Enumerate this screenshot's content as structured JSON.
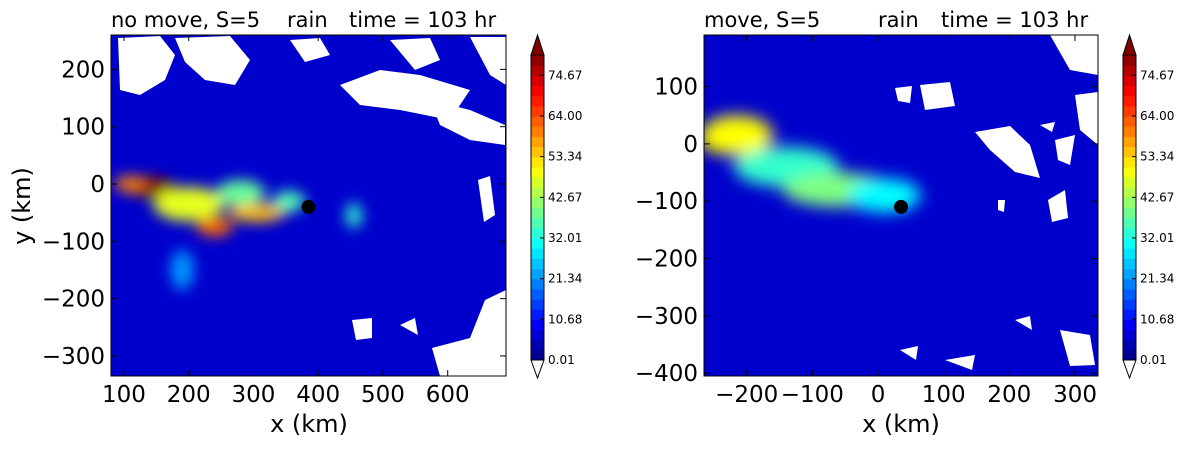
{
  "chart_data": [
    {
      "type": "heatmap",
      "title_left": "no move, S=5",
      "title_left_color": "#ff0000",
      "title_mid": "rain",
      "title_mid_color": "#000000",
      "title_right": "time = 103 hr",
      "title_right_color": "#0000ff",
      "xlabel": "x (km)",
      "ylabel": "y (km)",
      "xlim": [
        80,
        690
      ],
      "ylim": [
        -335,
        260
      ],
      "xticks": [
        100,
        200,
        300,
        400,
        500,
        600
      ],
      "xtick_labels": [
        "100",
        "200",
        "300",
        "400",
        "500",
        "600"
      ],
      "yticks": [
        200,
        100,
        0,
        -100,
        -200,
        -300
      ],
      "ytick_labels": [
        "200",
        "100",
        "0",
        "−100",
        "−200",
        "−300"
      ],
      "marker": {
        "x": 385,
        "y": -40,
        "color": "#000000"
      },
      "blobs": [
        {
          "x": 140,
          "y": -5,
          "rx": 38,
          "ry": 18,
          "value": 80
        },
        {
          "x": 110,
          "y": 0,
          "rx": 25,
          "ry": 14,
          "value": 60
        },
        {
          "x": 200,
          "y": -35,
          "rx": 55,
          "ry": 30,
          "value": 48
        },
        {
          "x": 240,
          "y": -75,
          "rx": 28,
          "ry": 16,
          "value": 62
        },
        {
          "x": 305,
          "y": -50,
          "rx": 45,
          "ry": 16,
          "value": 55
        },
        {
          "x": 280,
          "y": -15,
          "rx": 38,
          "ry": 22,
          "value": 38
        },
        {
          "x": 355,
          "y": -30,
          "rx": 25,
          "ry": 18,
          "value": 36
        },
        {
          "x": 455,
          "y": -55,
          "rx": 12,
          "ry": 22,
          "value": 34
        },
        {
          "x": 190,
          "y": -150,
          "rx": 18,
          "ry": 35,
          "value": 22
        }
      ],
      "colorbar": {
        "tick_labels": [
          "74.67",
          "64.00",
          "53.34",
          "42.67",
          "32.01",
          "21.34",
          "10.68",
          "0.01"
        ],
        "vmin": 0.01,
        "vmax": 80
      }
    },
    {
      "type": "heatmap",
      "title_left": "move, S=5",
      "title_left_color": "#ff0000",
      "title_mid": "rain",
      "title_mid_color": "#000000",
      "title_right": "time = 103 hr",
      "title_right_color": "#0000ff",
      "xlabel": "x (km)",
      "ylabel": "",
      "xlim": [
        -265,
        335
      ],
      "ylim": [
        -405,
        190
      ],
      "xticks": [
        -200,
        -100,
        0,
        100,
        200,
        300
      ],
      "xtick_labels": [
        "−200",
        "−100",
        "0",
        "100",
        "200",
        "300"
      ],
      "yticks": [
        100,
        0,
        -100,
        -200,
        -300,
        -400
      ],
      "ytick_labels": [
        "100",
        "0",
        "−100",
        "−200",
        "−300",
        "−400"
      ],
      "marker": {
        "x": 35,
        "y": -110,
        "color": "#000000"
      },
      "blobs": [
        {
          "x": -240,
          "y": 5,
          "rx": 35,
          "ry": 22,
          "value": 80
        },
        {
          "x": -215,
          "y": 15,
          "rx": 55,
          "ry": 35,
          "value": 50
        },
        {
          "x": -140,
          "y": -40,
          "rx": 80,
          "ry": 35,
          "value": 34
        },
        {
          "x": -40,
          "y": -90,
          "rx": 35,
          "ry": 18,
          "value": 70
        },
        {
          "x": -60,
          "y": -80,
          "rx": 85,
          "ry": 30,
          "value": 40
        },
        {
          "x": 10,
          "y": -90,
          "rx": 55,
          "ry": 30,
          "value": 30
        }
      ],
      "colorbar": {
        "tick_labels": [
          "74.67",
          "64.00",
          "53.34",
          "42.67",
          "32.01",
          "21.34",
          "10.68",
          "0.01"
        ],
        "vmin": 0.01,
        "vmax": 80
      }
    }
  ]
}
